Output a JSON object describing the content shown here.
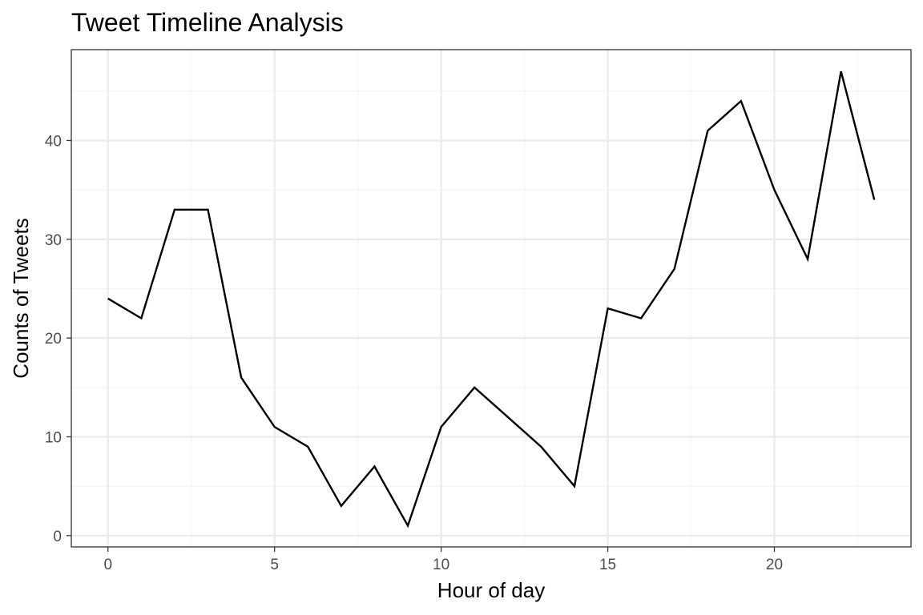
{
  "chart_data": {
    "type": "line",
    "title": "Tweet Timeline Analysis",
    "xlabel": "Hour of day",
    "ylabel": "Counts of Tweets",
    "x": [
      0,
      1,
      2,
      3,
      4,
      5,
      6,
      7,
      8,
      9,
      10,
      11,
      12,
      13,
      14,
      15,
      16,
      17,
      18,
      19,
      20,
      21,
      22,
      23
    ],
    "series": [
      {
        "values": [
          24,
          22,
          33,
          33,
          16,
          11,
          9,
          3,
          7,
          1,
          11,
          15,
          12,
          9,
          5,
          23,
          22,
          27,
          41,
          44,
          35,
          28,
          47,
          34
        ],
        "color": "#000000"
      }
    ],
    "xlim": [
      -1.1,
      24.1
    ],
    "ylim": [
      -1.15,
      49.2
    ],
    "xticks": [
      0,
      5,
      10,
      15,
      20
    ],
    "yticks": [
      0,
      10,
      20,
      30,
      40
    ],
    "xtick_labels": [
      "0",
      "5",
      "10",
      "15",
      "20"
    ],
    "ytick_labels": [
      "0",
      "10",
      "20",
      "30",
      "40"
    ],
    "grid": true,
    "legend": "none",
    "colors": {
      "background": "#ffffff",
      "panel_border": "#333333",
      "grid_major": "#ebebeb",
      "grid_minor": "#f4f4f4",
      "tick_text": "#4d4d4d"
    }
  }
}
